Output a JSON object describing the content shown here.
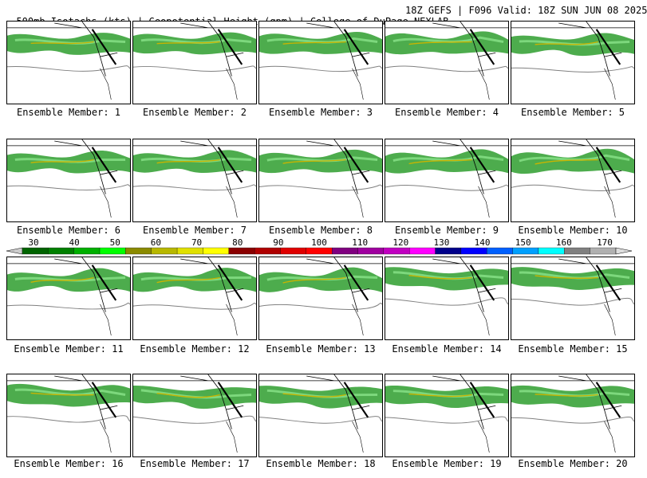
{
  "header": {
    "left": "500mb Isotachs (kts) | Geopotential Height (gpm) | College of DuPage NEXLAB",
    "right": "18Z GEFS | F096 Valid: 18Z SUN JUN 08 2025"
  },
  "panel_label_prefix": "Ensemble Member: ",
  "members": [
    1,
    2,
    3,
    4,
    5,
    6,
    7,
    8,
    9,
    10,
    11,
    12,
    13,
    14,
    15,
    16,
    17,
    18,
    19,
    20
  ],
  "colorbar": {
    "ticks": [
      "30",
      "40",
      "50",
      "60",
      "70",
      "80",
      "90",
      "100",
      "110",
      "120",
      "130",
      "140",
      "150",
      "160",
      "170"
    ],
    "colors": [
      "#006400",
      "#008000",
      "#00b000",
      "#00ff00",
      "#8b8b00",
      "#b8b800",
      "#e0e000",
      "#ffff00",
      "#8b0000",
      "#b00000",
      "#e00000",
      "#ff0000",
      "#800080",
      "#a000a0",
      "#c000c0",
      "#ff00ff",
      "#00008b",
      "#0000ff",
      "#0060ff",
      "#00a0ff",
      "#00ffff",
      "#808080",
      "#b0b0b0"
    ]
  }
}
